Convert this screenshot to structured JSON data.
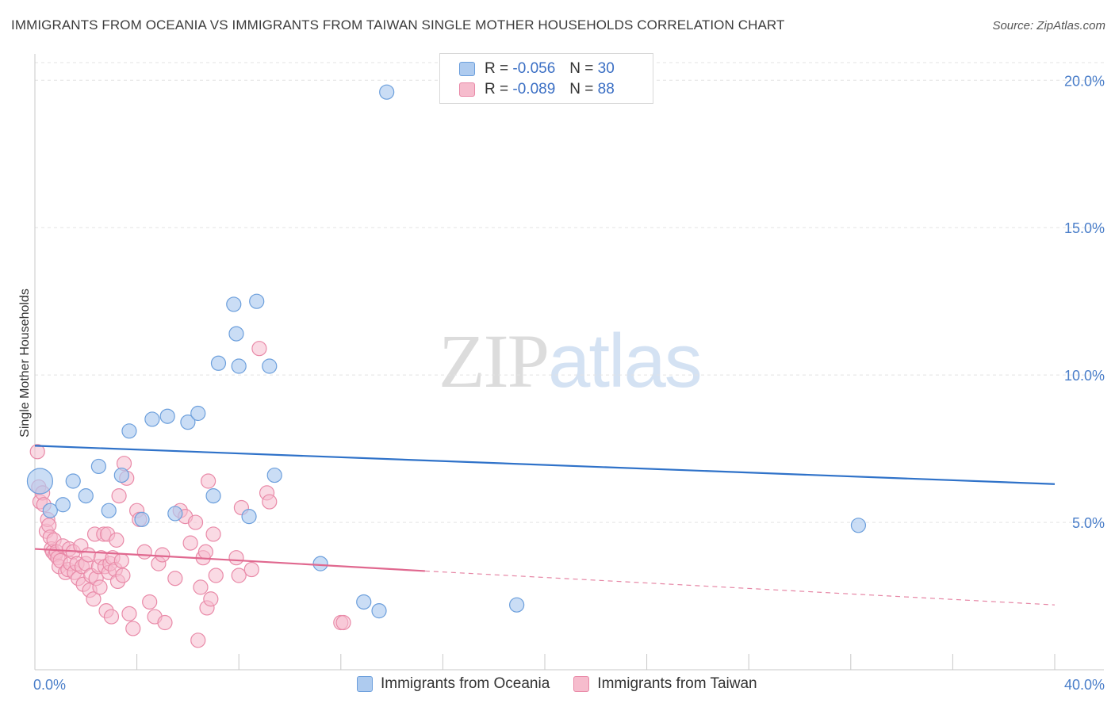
{
  "header": {
    "title": "IMMIGRANTS FROM OCEANIA VS IMMIGRANTS FROM TAIWAN SINGLE MOTHER HOUSEHOLDS CORRELATION CHART",
    "source": "Source: ZipAtlas.com"
  },
  "watermark": {
    "zip": "ZIP",
    "atlas": "atlas"
  },
  "legend": {
    "r_label": "R =",
    "n_label": "N =",
    "series": [
      {
        "r": "-0.056",
        "n": "30"
      },
      {
        "r": "-0.089",
        "n": "88"
      }
    ]
  },
  "colors": {
    "oceania_fill": "#aecbef",
    "oceania_stroke": "#6c9fdc",
    "oceania_line": "#2f72c9",
    "taiwan_fill": "#f6bccd",
    "taiwan_stroke": "#e98aa8",
    "taiwan_line": "#e0688f",
    "grid": "#e3e3e3",
    "tick_text": "#4a7ec9"
  },
  "chart_data": {
    "type": "scatter",
    "title": "IMMIGRANTS FROM OCEANIA VS IMMIGRANTS FROM TAIWAN SINGLE MOTHER HOUSEHOLDS CORRELATION CHART",
    "xlabel": "",
    "ylabel": "Single Mother Households",
    "xlim": [
      0,
      40
    ],
    "ylim": [
      0,
      20.6
    ],
    "x_tick_labels": [
      "0.0%",
      "40.0%"
    ],
    "y_ticks": [
      5,
      10,
      15,
      20
    ],
    "y_tick_labels": [
      "5.0%",
      "10.0%",
      "15.0%",
      "20.0%"
    ],
    "legend_position": "top-center",
    "series": [
      {
        "name": "Immigrants from Oceania",
        "r": -0.056,
        "n": 30,
        "trend": {
          "x": [
            0,
            40
          ],
          "y": [
            7.6,
            6.3
          ]
        },
        "points": [
          {
            "x": 0.2,
            "y": 6.4,
            "big": true
          },
          {
            "x": 0.6,
            "y": 5.4
          },
          {
            "x": 1.1,
            "y": 5.6
          },
          {
            "x": 1.5,
            "y": 6.4
          },
          {
            "x": 2.0,
            "y": 5.9
          },
          {
            "x": 2.5,
            "y": 6.9
          },
          {
            "x": 2.9,
            "y": 5.4
          },
          {
            "x": 3.4,
            "y": 6.6
          },
          {
            "x": 3.7,
            "y": 8.1
          },
          {
            "x": 4.2,
            "y": 5.1
          },
          {
            "x": 4.6,
            "y": 8.5
          },
          {
            "x": 5.2,
            "y": 8.6
          },
          {
            "x": 5.5,
            "y": 5.3
          },
          {
            "x": 6.0,
            "y": 8.4
          },
          {
            "x": 6.4,
            "y": 8.7
          },
          {
            "x": 7.0,
            "y": 5.9
          },
          {
            "x": 7.2,
            "y": 10.4
          },
          {
            "x": 7.8,
            "y": 12.4
          },
          {
            "x": 7.9,
            "y": 11.4
          },
          {
            "x": 8.0,
            "y": 10.3
          },
          {
            "x": 8.4,
            "y": 5.2
          },
          {
            "x": 8.7,
            "y": 12.5
          },
          {
            "x": 9.2,
            "y": 10.3
          },
          {
            "x": 9.4,
            "y": 6.6
          },
          {
            "x": 11.2,
            "y": 3.6
          },
          {
            "x": 12.9,
            "y": 2.3
          },
          {
            "x": 13.5,
            "y": 2.0
          },
          {
            "x": 13.8,
            "y": 19.6
          },
          {
            "x": 18.9,
            "y": 2.2
          },
          {
            "x": 32.3,
            "y": 4.9
          }
        ]
      },
      {
        "name": "Immigrants from Taiwan",
        "r": -0.089,
        "n": 88,
        "trend": {
          "x": [
            0,
            15.3
          ],
          "y": [
            4.1,
            3.35
          ]
        },
        "trend_dashed": {
          "x": [
            15.3,
            40
          ],
          "y": [
            3.35,
            2.2
          ]
        },
        "points": [
          {
            "x": 0.1,
            "y": 7.4
          },
          {
            "x": 0.15,
            "y": 6.2
          },
          {
            "x": 0.2,
            "y": 5.7
          },
          {
            "x": 0.3,
            "y": 6.0
          },
          {
            "x": 0.35,
            "y": 5.6
          },
          {
            "x": 0.45,
            "y": 4.7
          },
          {
            "x": 0.5,
            "y": 5.1
          },
          {
            "x": 0.55,
            "y": 4.9
          },
          {
            "x": 0.6,
            "y": 4.5
          },
          {
            "x": 0.65,
            "y": 4.1
          },
          {
            "x": 0.7,
            "y": 4.0
          },
          {
            "x": 0.75,
            "y": 4.4
          },
          {
            "x": 0.8,
            "y": 3.9
          },
          {
            "x": 0.85,
            "y": 4.0
          },
          {
            "x": 0.9,
            "y": 3.8
          },
          {
            "x": 0.95,
            "y": 3.5
          },
          {
            "x": 1.0,
            "y": 3.7
          },
          {
            "x": 1.1,
            "y": 4.2
          },
          {
            "x": 1.2,
            "y": 3.3
          },
          {
            "x": 1.3,
            "y": 3.4
          },
          {
            "x": 1.35,
            "y": 4.1
          },
          {
            "x": 1.4,
            "y": 3.6
          },
          {
            "x": 1.5,
            "y": 4.0
          },
          {
            "x": 1.55,
            "y": 3.3
          },
          {
            "x": 1.65,
            "y": 3.6
          },
          {
            "x": 1.7,
            "y": 3.1
          },
          {
            "x": 1.8,
            "y": 4.2
          },
          {
            "x": 1.85,
            "y": 3.5
          },
          {
            "x": 1.9,
            "y": 2.9
          },
          {
            "x": 2.0,
            "y": 3.6
          },
          {
            "x": 2.1,
            "y": 3.9
          },
          {
            "x": 2.15,
            "y": 2.7
          },
          {
            "x": 2.2,
            "y": 3.2
          },
          {
            "x": 2.3,
            "y": 2.4
          },
          {
            "x": 2.35,
            "y": 4.6
          },
          {
            "x": 2.4,
            "y": 3.1
          },
          {
            "x": 2.5,
            "y": 3.5
          },
          {
            "x": 2.55,
            "y": 2.8
          },
          {
            "x": 2.6,
            "y": 3.8
          },
          {
            "x": 2.7,
            "y": 4.6
          },
          {
            "x": 2.75,
            "y": 3.5
          },
          {
            "x": 2.8,
            "y": 2.0
          },
          {
            "x": 2.85,
            "y": 4.6
          },
          {
            "x": 2.9,
            "y": 3.3
          },
          {
            "x": 2.95,
            "y": 3.6
          },
          {
            "x": 3.0,
            "y": 1.8
          },
          {
            "x": 3.05,
            "y": 3.8
          },
          {
            "x": 3.15,
            "y": 3.4
          },
          {
            "x": 3.2,
            "y": 4.4
          },
          {
            "x": 3.25,
            "y": 3.0
          },
          {
            "x": 3.3,
            "y": 5.9
          },
          {
            "x": 3.4,
            "y": 3.7
          },
          {
            "x": 3.45,
            "y": 3.2
          },
          {
            "x": 3.5,
            "y": 7.0
          },
          {
            "x": 3.6,
            "y": 6.5
          },
          {
            "x": 3.7,
            "y": 1.9
          },
          {
            "x": 3.85,
            "y": 1.4
          },
          {
            "x": 4.0,
            "y": 5.4
          },
          {
            "x": 4.1,
            "y": 5.1
          },
          {
            "x": 4.3,
            "y": 4.0
          },
          {
            "x": 4.5,
            "y": 2.3
          },
          {
            "x": 4.7,
            "y": 1.8
          },
          {
            "x": 4.85,
            "y": 3.6
          },
          {
            "x": 5.0,
            "y": 3.9
          },
          {
            "x": 5.1,
            "y": 1.6
          },
          {
            "x": 5.5,
            "y": 3.1
          },
          {
            "x": 5.7,
            "y": 5.4
          },
          {
            "x": 5.9,
            "y": 5.2
          },
          {
            "x": 6.1,
            "y": 4.3
          },
          {
            "x": 6.3,
            "y": 5.0
          },
          {
            "x": 6.4,
            "y": 1.0
          },
          {
            "x": 6.5,
            "y": 2.8
          },
          {
            "x": 6.6,
            "y": 3.8
          },
          {
            "x": 6.7,
            "y": 4.0
          },
          {
            "x": 6.75,
            "y": 2.1
          },
          {
            "x": 6.8,
            "y": 6.4
          },
          {
            "x": 6.9,
            "y": 2.4
          },
          {
            "x": 7.0,
            "y": 4.6
          },
          {
            "x": 7.1,
            "y": 3.2
          },
          {
            "x": 7.9,
            "y": 3.8
          },
          {
            "x": 8.0,
            "y": 3.2
          },
          {
            "x": 8.1,
            "y": 5.5
          },
          {
            "x": 8.5,
            "y": 3.4
          },
          {
            "x": 8.8,
            "y": 10.9
          },
          {
            "x": 9.1,
            "y": 6.0
          },
          {
            "x": 9.2,
            "y": 5.7
          },
          {
            "x": 12.0,
            "y": 1.6
          },
          {
            "x": 12.1,
            "y": 1.6
          }
        ]
      }
    ]
  },
  "bottom_legend": {
    "items": [
      "Immigrants from Oceania",
      "Immigrants from Taiwan"
    ]
  }
}
